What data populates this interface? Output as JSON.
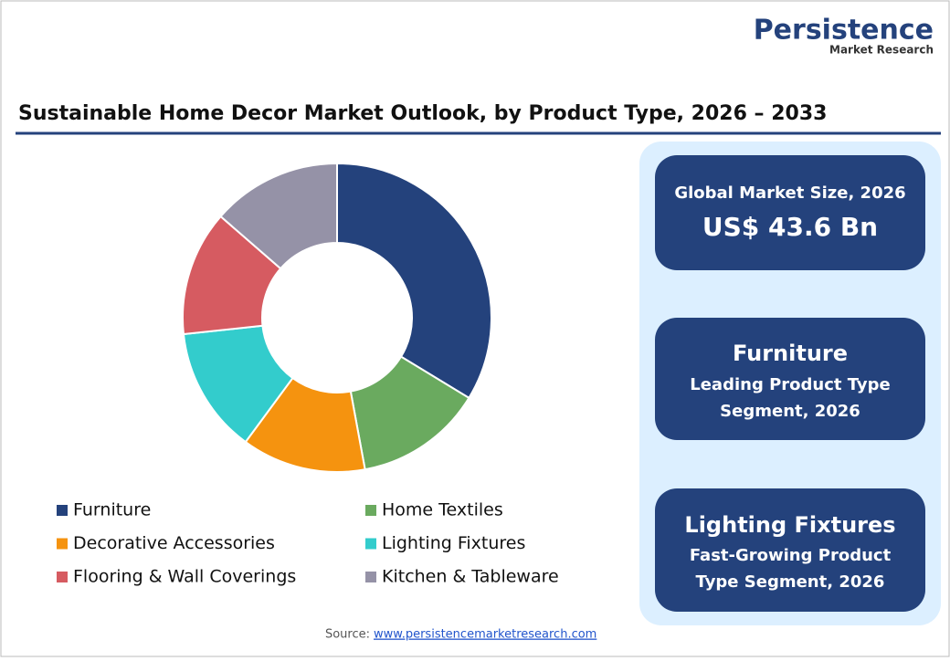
{
  "logo": {
    "name": "Persistence",
    "tagline": "Market Research"
  },
  "chart_data": {
    "type": "pie",
    "title": "Sustainable Home Decor Market Outlook, by Product Type, 2026 – 2033",
    "categories": [
      "Furniture",
      "Home Textiles",
      "Decorative Accessories",
      "Lighting Fixtures",
      "Flooring & Wall Coverings",
      "Kitchen & Tableware"
    ],
    "values": [
      33.7,
      13.4,
      13.0,
      13.2,
      13.1,
      13.6
    ],
    "colors": [
      "#24427c",
      "#6aaa5f",
      "#f5930f",
      "#33cccc",
      "#d65b61",
      "#9592a7"
    ]
  },
  "panel": [
    {
      "label": "Global Market Size, 2026",
      "value": "US$ 43.6 Bn"
    },
    {
      "value": "Furniture",
      "label_lines": [
        "Leading Product Type",
        "Segment, 2026"
      ]
    },
    {
      "value": "Lighting Fixtures",
      "label_lines": [
        "Fast-Growing Product",
        "Type Segment, 2026"
      ]
    }
  ],
  "source": {
    "prefix": "Source:",
    "url": "www.persistencemarketresearch.com"
  }
}
